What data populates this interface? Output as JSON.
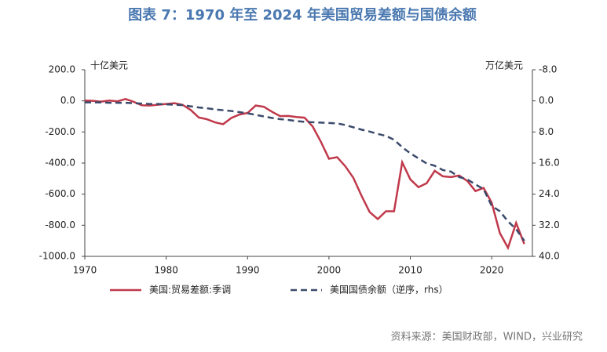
{
  "chart_data": {
    "type": "line",
    "title": "图表 7：1970 年至 2024 年美国贸易差额与国债余额",
    "y_label": "十亿美元",
    "y2_label": "万亿美元",
    "source": "资料来源：美国财政部，WIND，兴业研究",
    "x": [
      1970,
      1971,
      1972,
      1973,
      1974,
      1975,
      1976,
      1977,
      1978,
      1979,
      1980,
      1981,
      1982,
      1983,
      1984,
      1985,
      1986,
      1987,
      1988,
      1989,
      1990,
      1991,
      1992,
      1993,
      1994,
      1995,
      1996,
      1997,
      1998,
      1999,
      2000,
      2001,
      2002,
      2003,
      2004,
      2005,
      2006,
      2007,
      2008,
      2009,
      2010,
      2011,
      2012,
      2013,
      2014,
      2015,
      2016,
      2017,
      2018,
      2019,
      2020,
      2021,
      2022,
      2023,
      2024
    ],
    "series": [
      {
        "name": "美国:贸易差额:季调",
        "color": "#c0394b",
        "dash": false,
        "values": [
          2,
          0,
          -5,
          2,
          -3,
          12,
          -6,
          -28,
          -30,
          -25,
          -20,
          -15,
          -25,
          -58,
          -107,
          -118,
          -138,
          -150,
          -110,
          -88,
          -78,
          -30,
          -38,
          -70,
          -98,
          -97,
          -104,
          -108,
          -165,
          -262,
          -372,
          -362,
          -420,
          -495,
          -610,
          -715,
          -760,
          -710,
          -710,
          -395,
          -505,
          -555,
          -530,
          -450,
          -485,
          -490,
          -480,
          -515,
          -580,
          -560,
          -655,
          -850,
          -945,
          -785,
          -920
        ]
      },
      {
        "name": "美国国债余额（逆序，rhs）",
        "color": "#3b4a6b",
        "dash": true,
        "axis": "y2",
        "values": [
          0.4,
          0.4,
          0.4,
          0.5,
          0.5,
          0.5,
          0.6,
          0.7,
          0.8,
          0.8,
          0.9,
          1.0,
          1.1,
          1.4,
          1.7,
          1.9,
          2.2,
          2.4,
          2.6,
          2.9,
          3.2,
          3.6,
          4.0,
          4.4,
          4.7,
          4.9,
          5.2,
          5.4,
          5.5,
          5.6,
          5.7,
          5.8,
          6.2,
          6.8,
          7.4,
          7.9,
          8.5,
          9.0,
          10.0,
          11.9,
          13.5,
          14.8,
          16.1,
          16.7,
          17.8,
          18.2,
          19.6,
          20.2,
          21.5,
          22.7,
          27.0,
          28.4,
          31.0,
          33.0,
          36.0
        ]
      }
    ],
    "xlim": [
      1970,
      2025
    ],
    "xticks": [
      1970,
      1980,
      1990,
      2000,
      2010,
      2020
    ],
    "ylim": [
      -1000,
      200
    ],
    "yticks": [
      {
        "value": -1000,
        "label": "-1000.0"
      },
      {
        "value": -800,
        "label": "-800.0"
      },
      {
        "value": -600,
        "label": "-600.0"
      },
      {
        "value": -400,
        "label": "-400.0"
      },
      {
        "value": -200,
        "label": "-200.0"
      },
      {
        "value": 0,
        "label": "0.0"
      },
      {
        "value": 200,
        "label": "200.0"
      }
    ],
    "y2lim": [
      40,
      -8
    ],
    "y2ticks": [
      {
        "value": 40,
        "label": "40.0"
      },
      {
        "value": 32,
        "label": "32.0"
      },
      {
        "value": 24,
        "label": "24.0"
      },
      {
        "value": 16,
        "label": "16.0"
      },
      {
        "value": 8,
        "label": "8.0"
      },
      {
        "value": 0,
        "label": "0.0"
      },
      {
        "value": -8,
        "label": "-8.0"
      }
    ]
  }
}
